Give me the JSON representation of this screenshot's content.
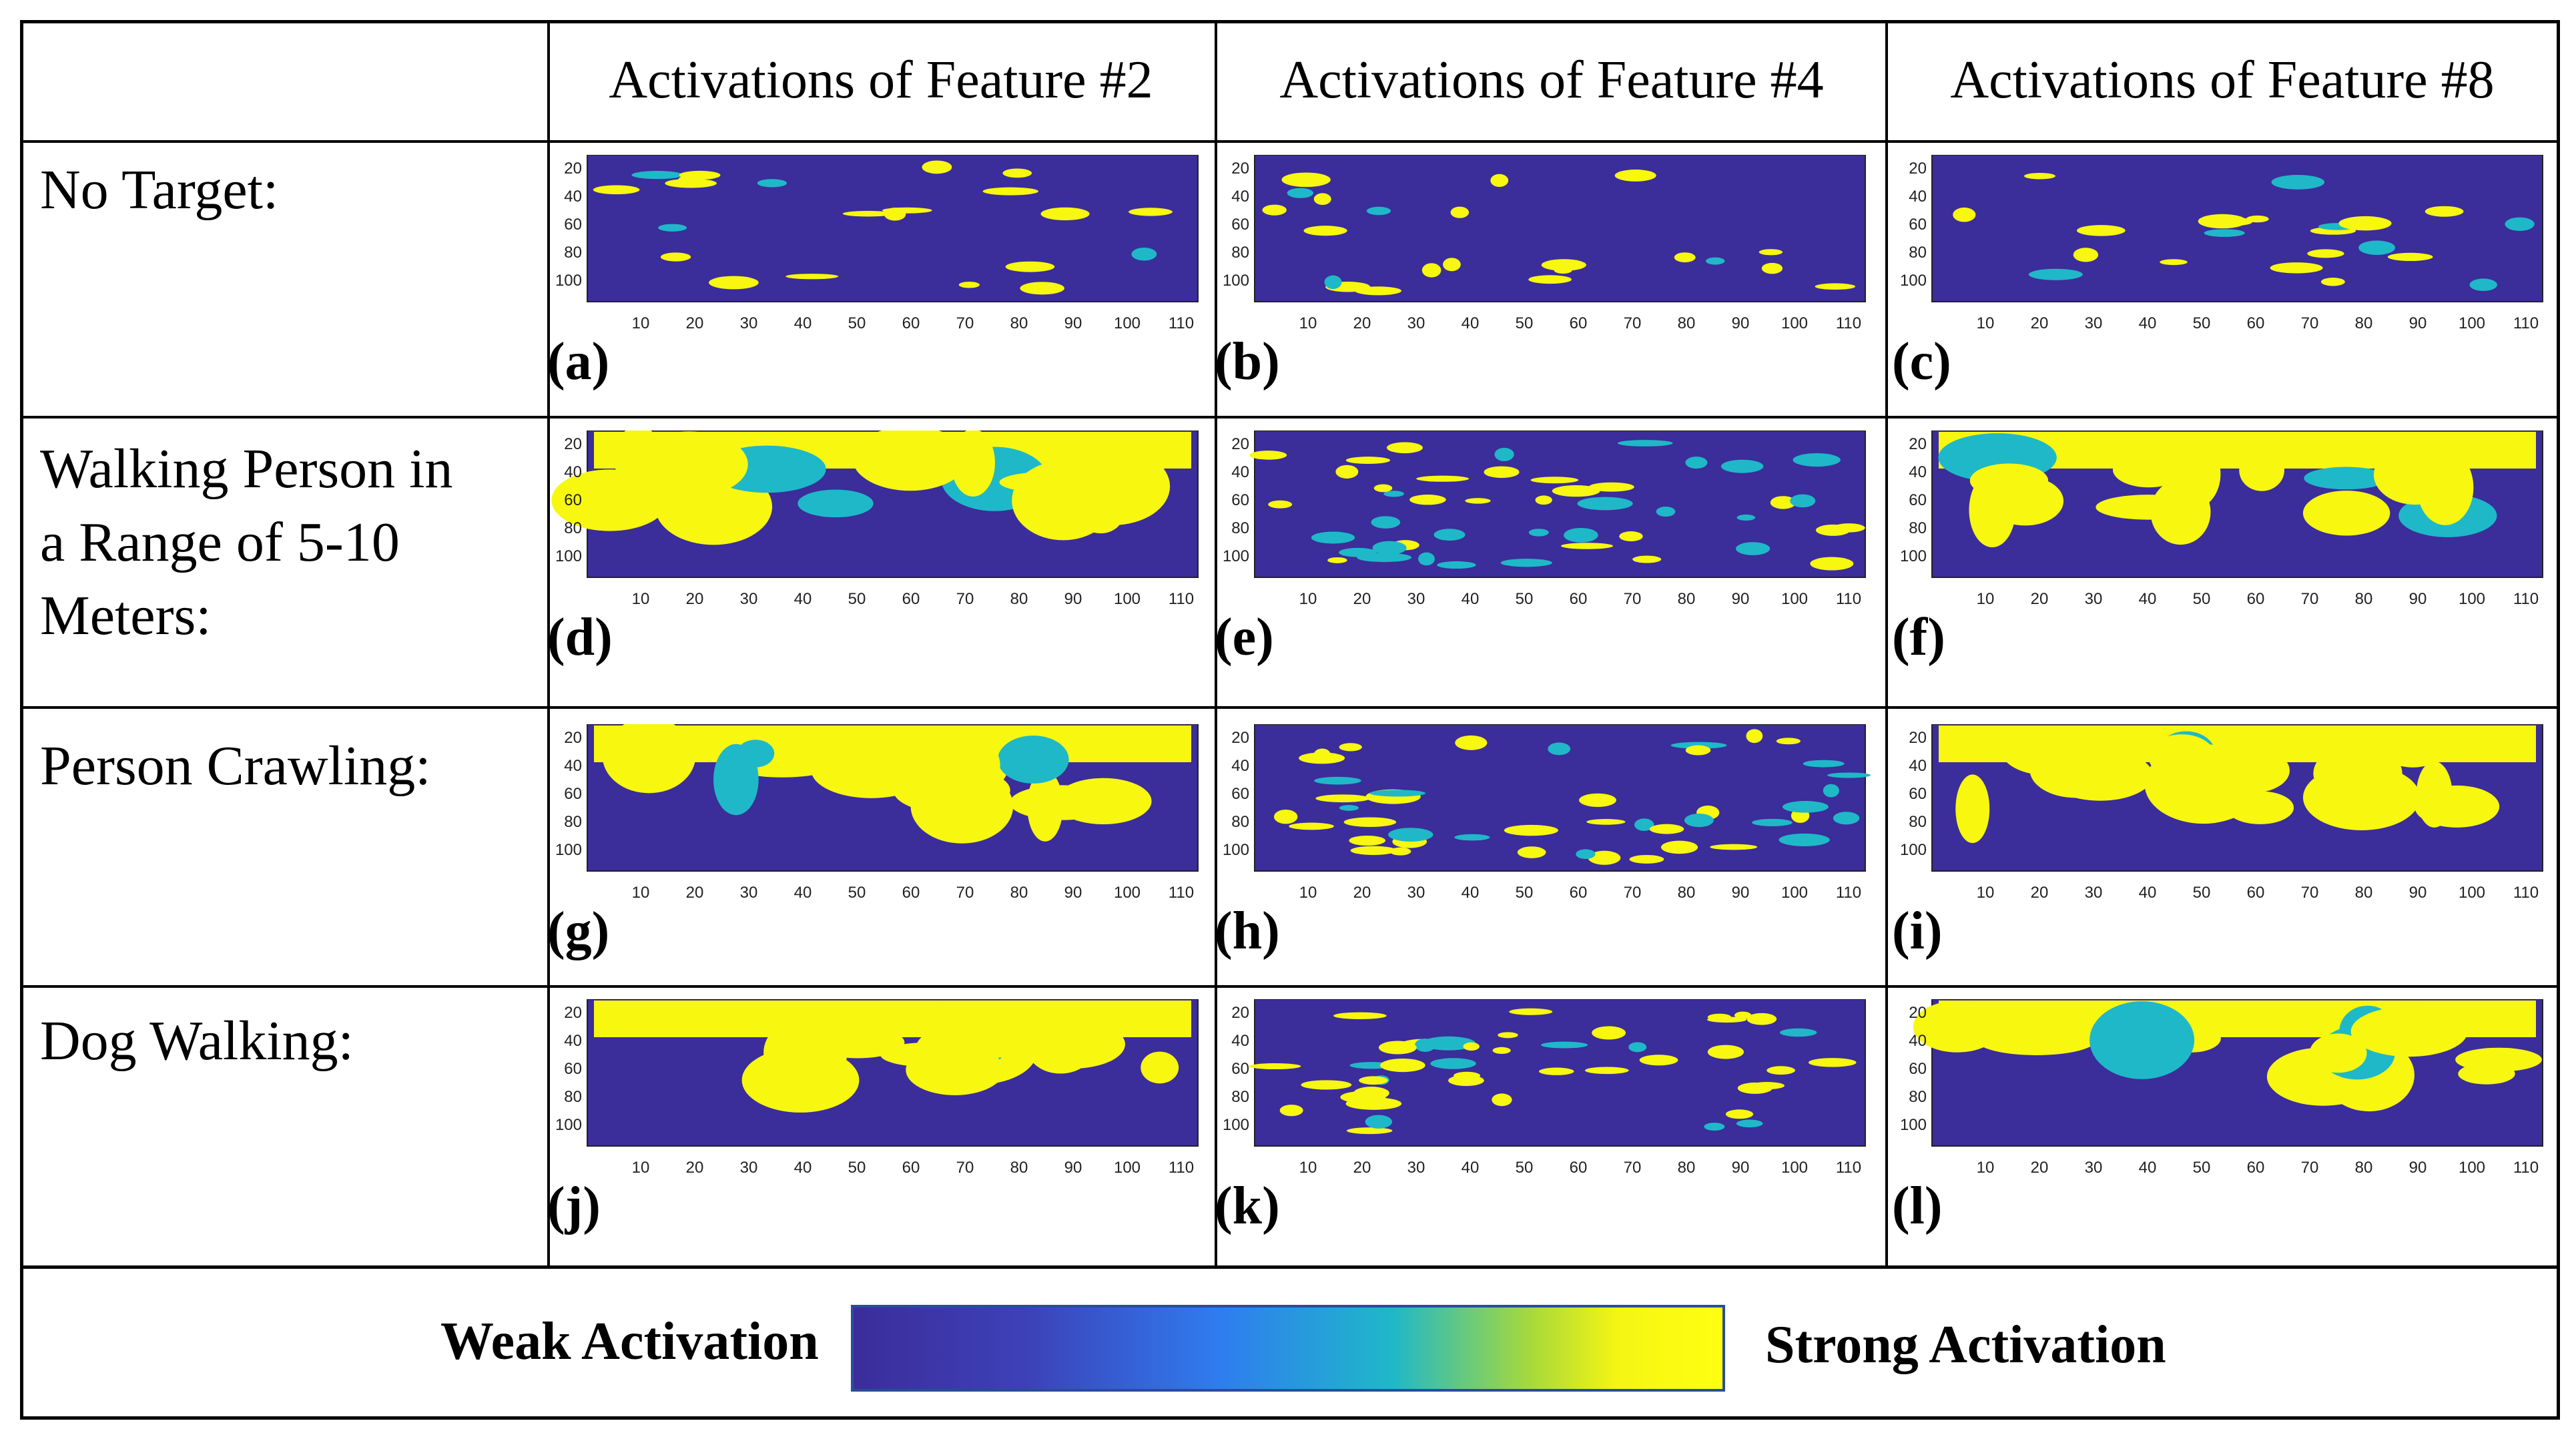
{
  "columns": [
    "Activations of Feature #2",
    "Activations of Feature #4",
    "Activations of Feature #8"
  ],
  "rows": [
    {
      "label": "No Target:",
      "panels": [
        "(a)",
        "(b)",
        "(c)"
      ]
    },
    {
      "label": "Walking Person in\na Range of 5-10\nMeters:",
      "panels": [
        "(d)",
        "(e)",
        "(f)"
      ]
    },
    {
      "label": "Person Crawling:",
      "panels": [
        "(g)",
        "(h)",
        "(i)"
      ]
    },
    {
      "label": "Dog Walking:",
      "panels": [
        "(j)",
        "(k)",
        "(l)"
      ]
    }
  ],
  "heatmap_axes": {
    "y_ticks": [
      "20",
      "40",
      "60",
      "80",
      "100"
    ],
    "x_ticks": [
      "10",
      "20",
      "30",
      "40",
      "50",
      "60",
      "70",
      "80",
      "90",
      "100",
      "110"
    ]
  },
  "legend": {
    "weak_label": "Weak Activation",
    "strong_label": "Strong Activation",
    "colormap": [
      "#3b2d9a",
      "#3d41b8",
      "#2f7cf0",
      "#1fb8c8",
      "#a8d93a",
      "#f5f514",
      "#ffff10"
    ]
  },
  "colors": {
    "low": "#3b2d9a",
    "mid": "#1fb8c8",
    "high": "#f7f70f"
  }
}
